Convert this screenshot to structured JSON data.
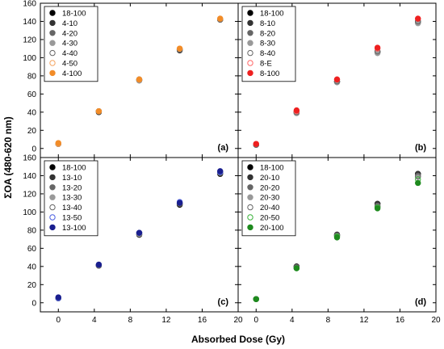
{
  "chart_data": {
    "type": "scatter",
    "layout": "2x2",
    "xlabel": "Absorbed Dose (Gy)",
    "ylabel": "ΣOA (480-620 nm)",
    "xlim": [
      -2,
      20
    ],
    "ylim": [
      -10,
      160
    ],
    "x_ticks": [
      0,
      4,
      8,
      12,
      16,
      20
    ],
    "y_ticks": [
      0,
      20,
      40,
      60,
      80,
      100,
      120,
      140,
      160
    ],
    "x": [
      0,
      4.5,
      9,
      13.5,
      18
    ],
    "legend_position": "top-left",
    "panels": [
      {
        "label": "(a)",
        "series": [
          {
            "name": "18-100",
            "color": "#000000",
            "filled": true,
            "values": [
              5,
              41,
              76,
              109,
              142
            ]
          },
          {
            "name": "4-10",
            "color": "#333333",
            "filled": true,
            "values": [
              5,
              40,
              75,
              108,
              142
            ]
          },
          {
            "name": "4-20",
            "color": "#666666",
            "filled": true,
            "values": [
              5,
              41,
              75,
              109,
              142
            ]
          },
          {
            "name": "4-30",
            "color": "#999999",
            "filled": true,
            "values": [
              5,
              41,
              75,
              109,
              143
            ]
          },
          {
            "name": "4-40",
            "color": "#666666",
            "filled": false,
            "values": [
              5,
              41,
              76,
              109,
              142
            ]
          },
          {
            "name": "4-50",
            "color": "#f4a460",
            "filled": false,
            "values": [
              5,
              41,
              76,
              110,
              143
            ]
          },
          {
            "name": "4-100",
            "color": "#f28c28",
            "filled": true,
            "values": [
              6,
              41,
              76,
              110,
              143
            ]
          }
        ]
      },
      {
        "label": "(b)",
        "series": [
          {
            "name": "18-100",
            "color": "#000000",
            "filled": true,
            "values": [
              4,
              40,
              74,
              107,
              140
            ]
          },
          {
            "name": "8-10",
            "color": "#333333",
            "filled": true,
            "values": [
              4,
              40,
              74,
              106,
              139
            ]
          },
          {
            "name": "8-20",
            "color": "#666666",
            "filled": true,
            "values": [
              4,
              39,
              73,
              106,
              139
            ]
          },
          {
            "name": "8-30",
            "color": "#999999",
            "filled": true,
            "values": [
              4,
              39,
              73,
              105,
              138
            ]
          },
          {
            "name": "8-40",
            "color": "#666666",
            "filled": false,
            "values": [
              4,
              40,
              74,
              107,
              140
            ]
          },
          {
            "name": "8-E",
            "color": "#ff6666",
            "filled": false,
            "values": [
              5,
              41,
              76,
              110,
              143
            ]
          },
          {
            "name": "8-100",
            "color": "#ee2020",
            "filled": true,
            "values": [
              5,
              42,
              76,
              111,
              143
            ]
          }
        ]
      },
      {
        "label": "(c)",
        "series": [
          {
            "name": "18-100",
            "color": "#000000",
            "filled": true,
            "values": [
              5,
              41,
              75,
              108,
              142
            ]
          },
          {
            "name": "13-10",
            "color": "#333333",
            "filled": true,
            "values": [
              5,
              41,
              75,
              109,
              143
            ]
          },
          {
            "name": "13-20",
            "color": "#666666",
            "filled": true,
            "values": [
              5,
              41,
              76,
              109,
              143
            ]
          },
          {
            "name": "13-30",
            "color": "#999999",
            "filled": true,
            "values": [
              5,
              42,
              76,
              110,
              144
            ]
          },
          {
            "name": "13-40",
            "color": "#666666",
            "filled": false,
            "values": [
              5,
              42,
              77,
              110,
              144
            ]
          },
          {
            "name": "13-50",
            "color": "#4a5ee0",
            "filled": false,
            "values": [
              5,
              42,
              77,
              111,
              144
            ]
          },
          {
            "name": "13-100",
            "color": "#1a1f8f",
            "filled": true,
            "values": [
              6,
              42,
              77,
              110,
              145
            ]
          }
        ]
      },
      {
        "label": "(d)",
        "series": [
          {
            "name": "18-100",
            "color": "#000000",
            "filled": true,
            "values": [
              4,
              40,
              75,
              109,
              142
            ]
          },
          {
            "name": "20-10",
            "color": "#333333",
            "filled": true,
            "values": [
              4,
              40,
              75,
              109,
              142
            ]
          },
          {
            "name": "20-20",
            "color": "#666666",
            "filled": true,
            "values": [
              4,
              39,
              74,
              107,
              140
            ]
          },
          {
            "name": "20-30",
            "color": "#999999",
            "filled": true,
            "values": [
              4,
              39,
              74,
              106,
              139
            ]
          },
          {
            "name": "20-40",
            "color": "#666666",
            "filled": false,
            "values": [
              4,
              39,
              74,
              106,
              139
            ]
          },
          {
            "name": "20-50",
            "color": "#39b239",
            "filled": false,
            "values": [
              4,
              38,
              73,
              105,
              136
            ]
          },
          {
            "name": "20-100",
            "color": "#1e8a1e",
            "filled": true,
            "values": [
              4,
              38,
              72,
              104,
              132
            ]
          }
        ]
      }
    ]
  }
}
